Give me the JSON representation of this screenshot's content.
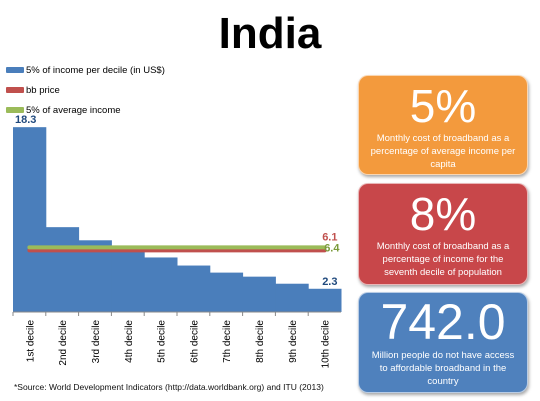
{
  "title": "India",
  "legend": [
    {
      "label": "5% of income per decile (in US$)",
      "color": "#4a7ebb"
    },
    {
      "label": "bb price",
      "color": "#c0504d"
    },
    {
      "label": "5% of average income",
      "color": "#9bbb59"
    }
  ],
  "chart_data": {
    "type": "bar",
    "categories": [
      "1st decile",
      "2nd decile",
      "3rd decile",
      "4th decile",
      "5th decile",
      "6th decile",
      "7th decile",
      "8th decile",
      "9th decile",
      "10th decile"
    ],
    "series": [
      {
        "name": "5% of income per decile (in US$)",
        "values": [
          18.3,
          8.4,
          7.1,
          6.1,
          5.4,
          4.6,
          3.9,
          3.5,
          2.8,
          2.3
        ],
        "color": "#4a7ebb"
      },
      {
        "name": "bb price",
        "values": [
          6.1,
          6.1,
          6.1,
          6.1,
          6.1,
          6.1,
          6.1,
          6.1,
          6.1,
          6.1
        ],
        "color": "#c0504d",
        "kind": "line"
      },
      {
        "name": "5% of average income",
        "values": [
          6.4,
          6.4,
          6.4,
          6.4,
          6.4,
          6.4,
          6.4,
          6.4,
          6.4,
          6.4
        ],
        "color": "#9bbb59",
        "kind": "line"
      }
    ],
    "data_labels": [
      {
        "text": "18.3",
        "series": 0,
        "index": 0,
        "color": "#1f497d"
      },
      {
        "text": "6.1",
        "series": 1,
        "index": 9,
        "color": "#c0504d"
      },
      {
        "text": "6.4",
        "series": 2,
        "index": 9,
        "color": "#7a9a3a"
      },
      {
        "text": "2.3",
        "series": 0,
        "index": 9,
        "color": "#1f497d"
      }
    ],
    "ylim": [
      0,
      20
    ],
    "grid": false
  },
  "cards": [
    {
      "big": "5%",
      "text": "Monthly cost of broadband as a percentage of average income per capita",
      "color": "#f39a3d"
    },
    {
      "big": "8%",
      "text": "Monthly cost of broadband as a percentage of income for the seventh decile of population",
      "color": "#c8474a"
    },
    {
      "big": "742.0",
      "text": "Million people do not have access to affordable broadband in the country",
      "color": "#4f81bd"
    }
  ],
  "source": "*Source: World Development Indicators (http://data.worldbank.org) and ITU (2013)"
}
